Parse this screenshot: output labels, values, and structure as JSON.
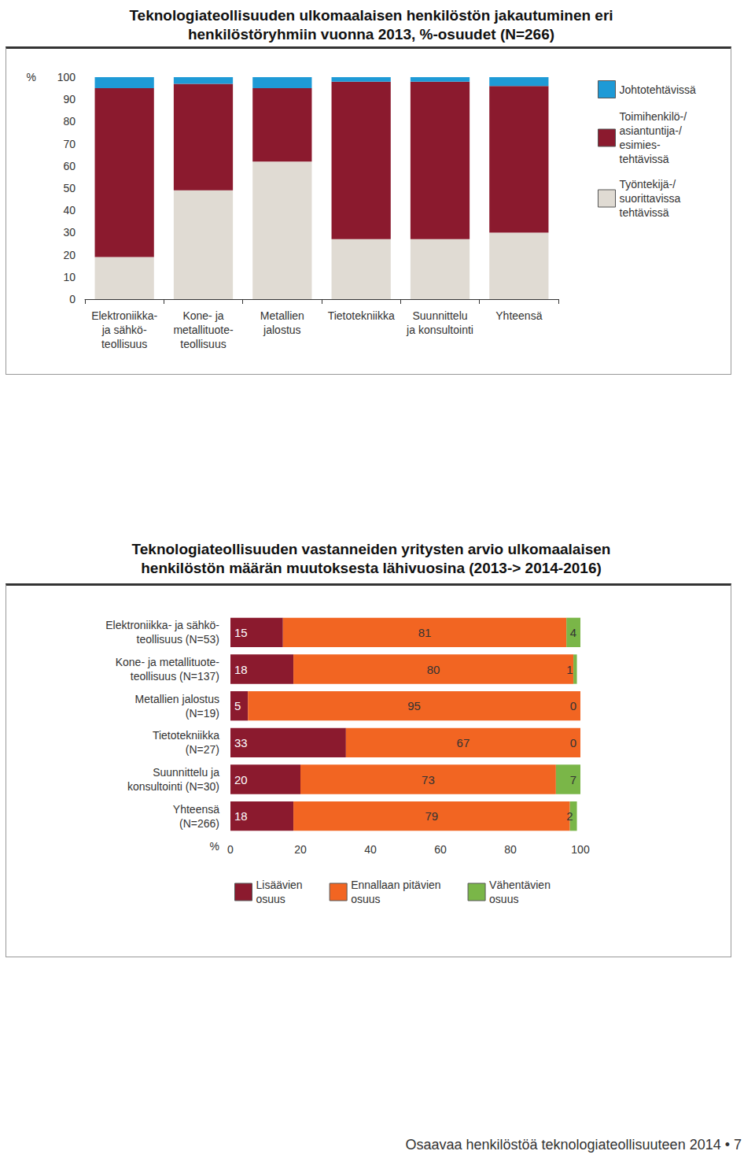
{
  "chart_data": [
    {
      "type": "bar",
      "title": "Teknologiateollisuuden ulkomaalaisen henkilöstön jakautuminen eri\nhenkilöstöryhmiin vuonna 2013, %-osuudet (N=266)",
      "ylabel": "%",
      "categories": [
        "Elektroniikka-\nja sähkö-\nteollisuus",
        "Kone- ja\nmetallituote-\nteollisuus",
        "Metallien\njalostus",
        "Tietotekniikka",
        "Suunnittelu\nja konsultointi",
        "Yhteensä"
      ],
      "series": [
        {
          "name": "Johtotehtävissä",
          "color": "#1e9ad6",
          "values": [
            5,
            3,
            5,
            2,
            2,
            4
          ]
        },
        {
          "name": "Toimihenkilö-/\nasiantuntija-/\nesimies-\ntehtävissä",
          "color": "#8b1a2e",
          "values": [
            76,
            48,
            33,
            71,
            71,
            66
          ]
        },
        {
          "name": "Työntekijä-/\nsuorittavissa\ntehtävissä",
          "color": "#e0dbd3",
          "values": [
            19,
            49,
            62,
            27,
            27,
            30
          ]
        }
      ],
      "ylim": [
        0,
        100
      ],
      "yticks": [
        0,
        10,
        20,
        30,
        40,
        50,
        60,
        70,
        80,
        90,
        100
      ],
      "stacked": true,
      "grid": false,
      "legend": "right"
    },
    {
      "type": "bar",
      "orientation": "horizontal",
      "title": "Teknologiateollisuuden vastanneiden yritysten arvio ulkomaalaisen\nhenkilöstön määrän muutoksesta lähivuosina (2013-> 2014-2016)",
      "xlabel": "%",
      "categories": [
        "Elektroniikka- ja sähkö-\nteollisuus (N=53)",
        "Kone- ja metallituote-\nteollisuus (N=137)",
        "Metallien jalostus\n(N=19)",
        "Tietotekniikka\n(N=27)",
        "Suunnittelu ja\nkonsultointi (N=30)",
        "Yhteensä\n(N=266)"
      ],
      "series": [
        {
          "name": "Lisäävien\nosuus",
          "color": "#8b1a2e",
          "values": [
            15,
            18,
            5,
            33,
            20,
            18
          ]
        },
        {
          "name": "Ennallaan pitävien\nosuus",
          "color": "#f26522",
          "values": [
            81,
            80,
            95,
            67,
            73,
            79
          ]
        },
        {
          "name": "Vähentävien\nosuus",
          "color": "#7ab648",
          "values": [
            4,
            1,
            0,
            0,
            7,
            2
          ]
        }
      ],
      "xlim": [
        0,
        100
      ],
      "xticks": [
        0,
        20,
        40,
        60,
        80,
        100
      ],
      "stacked": true,
      "data_labels": true,
      "grid": false,
      "legend": "bottom"
    }
  ],
  "footer": "Osaavaa henkilöstöä teknologiateollisuuteen 2014 • 7"
}
